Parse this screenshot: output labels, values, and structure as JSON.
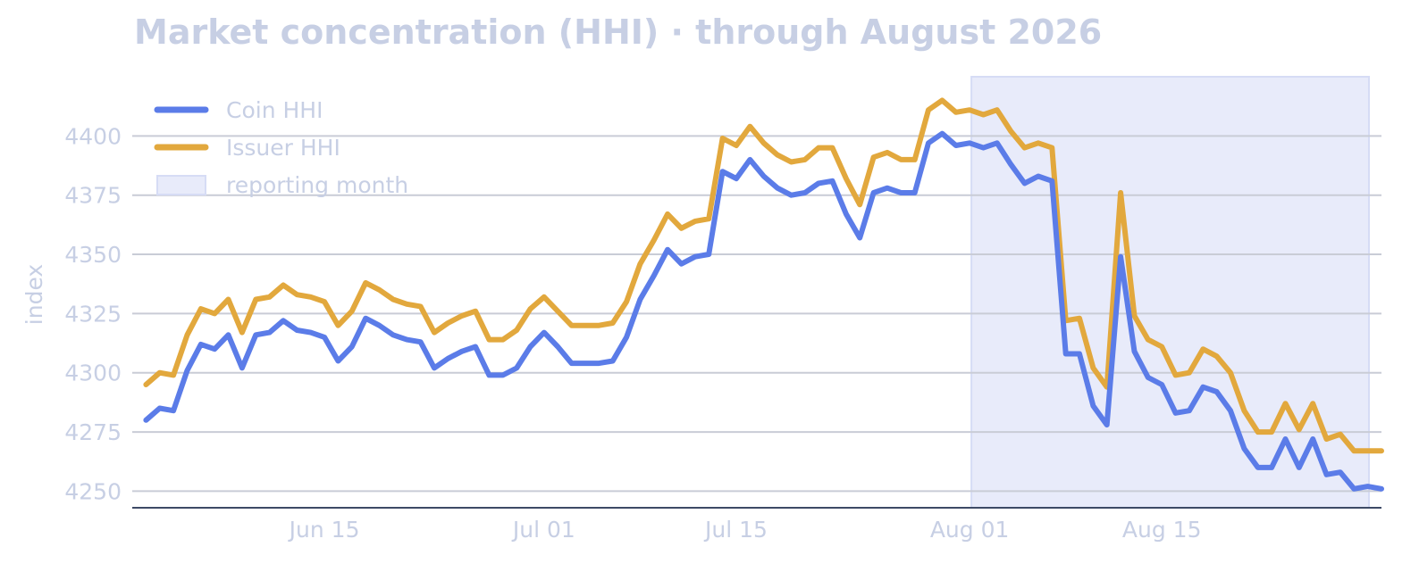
{
  "chart_data": {
    "type": "line",
    "title": "Market concentration (HHI) · through August 2026",
    "xlabel": "",
    "ylabel": "index",
    "ylim": [
      4243,
      4425
    ],
    "yticks": [
      4250,
      4275,
      4300,
      4325,
      4350,
      4375,
      4400
    ],
    "xlim": [
      "2026-06-01",
      "2026-08-31"
    ],
    "xticks": [
      {
        "date": "2026-06-15",
        "label": "Jun 15"
      },
      {
        "date": "2026-07-01",
        "label": "Jul 01"
      },
      {
        "date": "2026-07-15",
        "label": "Jul 15"
      },
      {
        "date": "2026-08-01",
        "label": "Aug 01"
      },
      {
        "date": "2026-08-15",
        "label": "Aug 15"
      }
    ],
    "grid": "horizontal",
    "legend_position": "top-left",
    "shaded_region": {
      "label": "reporting month",
      "start": "2026-08-01",
      "end": "2026-08-31",
      "color": "#e8ebfa"
    },
    "x": [
      "2026-06-02",
      "2026-06-03",
      "2026-06-04",
      "2026-06-05",
      "2026-06-06",
      "2026-06-07",
      "2026-06-08",
      "2026-06-09",
      "2026-06-10",
      "2026-06-11",
      "2026-06-12",
      "2026-06-13",
      "2026-06-14",
      "2026-06-15",
      "2026-06-16",
      "2026-06-17",
      "2026-06-18",
      "2026-06-19",
      "2026-06-20",
      "2026-06-21",
      "2026-06-22",
      "2026-06-23",
      "2026-06-24",
      "2026-06-25",
      "2026-06-26",
      "2026-06-27",
      "2026-06-28",
      "2026-06-29",
      "2026-06-30",
      "2026-07-01",
      "2026-07-02",
      "2026-07-03",
      "2026-07-04",
      "2026-07-05",
      "2026-07-06",
      "2026-07-07",
      "2026-07-08",
      "2026-07-09",
      "2026-07-10",
      "2026-07-11",
      "2026-07-12",
      "2026-07-13",
      "2026-07-14",
      "2026-07-15",
      "2026-07-16",
      "2026-07-17",
      "2026-07-18",
      "2026-07-19",
      "2026-07-20",
      "2026-07-21",
      "2026-07-22",
      "2026-07-23",
      "2026-07-24",
      "2026-07-25",
      "2026-07-26",
      "2026-07-27",
      "2026-07-28",
      "2026-07-29",
      "2026-07-30",
      "2026-07-31",
      "2026-08-01",
      "2026-08-02",
      "2026-08-03",
      "2026-08-04",
      "2026-08-05",
      "2026-08-06",
      "2026-08-07",
      "2026-08-08",
      "2026-08-09",
      "2026-08-10",
      "2026-08-11",
      "2026-08-12",
      "2026-08-13",
      "2026-08-14",
      "2026-08-15",
      "2026-08-16",
      "2026-08-17",
      "2026-08-18",
      "2026-08-19",
      "2026-08-20",
      "2026-08-21",
      "2026-08-22",
      "2026-08-23",
      "2026-08-24",
      "2026-08-25",
      "2026-08-26",
      "2026-08-27",
      "2026-08-28",
      "2026-08-29",
      "2026-08-30",
      "2026-08-31"
    ],
    "series": [
      {
        "name": "Coin HHI",
        "color": "#5b7ce8",
        "values": [
          4280,
          4285,
          4284,
          4301,
          4312,
          4310,
          4316,
          4302,
          4316,
          4317,
          4322,
          4318,
          4317,
          4315,
          4305,
          4311,
          4323,
          4320,
          4316,
          4314,
          4313,
          4302,
          4306,
          4309,
          4311,
          4299,
          4299,
          4302,
          4311,
          4317,
          4311,
          4304,
          4304,
          4304,
          4305,
          4315,
          4331,
          4341,
          4352,
          4346,
          4349,
          4350,
          4385,
          4382,
          4390,
          4383,
          4378,
          4375,
          4376,
          4380,
          4381,
          4367,
          4357,
          4376,
          4378,
          4376,
          4376,
          4397,
          4401,
          4396,
          4397,
          4395,
          4397,
          4388,
          4380,
          4383,
          4381,
          4308,
          4308,
          4286,
          4278,
          4349,
          4309,
          4298,
          4295,
          4283,
          4284,
          4294,
          4292,
          4284,
          4268,
          4260,
          4260,
          4272,
          4260,
          4272,
          4257,
          4258,
          4251,
          4252,
          4251
        ]
      },
      {
        "name": "Issuer HHI",
        "color": "#e2a83d",
        "values": [
          4295,
          4300,
          4299,
          4316,
          4327,
          4325,
          4331,
          4317,
          4331,
          4332,
          4337,
          4333,
          4332,
          4330,
          4320,
          4326,
          4338,
          4335,
          4331,
          4329,
          4328,
          4317,
          4321,
          4324,
          4326,
          4314,
          4314,
          4318,
          4327,
          4332,
          4326,
          4320,
          4320,
          4320,
          4321,
          4330,
          4346,
          4356,
          4367,
          4361,
          4364,
          4365,
          4399,
          4396,
          4404,
          4397,
          4392,
          4389,
          4390,
          4395,
          4395,
          4382,
          4371,
          4391,
          4393,
          4390,
          4390,
          4411,
          4415,
          4410,
          4411,
          4409,
          4411,
          4402,
          4395,
          4397,
          4395,
          4322,
          4323,
          4302,
          4294,
          4376,
          4324,
          4314,
          4311,
          4299,
          4300,
          4310,
          4307,
          4300,
          4284,
          4275,
          4275,
          4287,
          4276,
          4287,
          4272,
          4274,
          4267,
          4267,
          4267
        ]
      }
    ]
  }
}
